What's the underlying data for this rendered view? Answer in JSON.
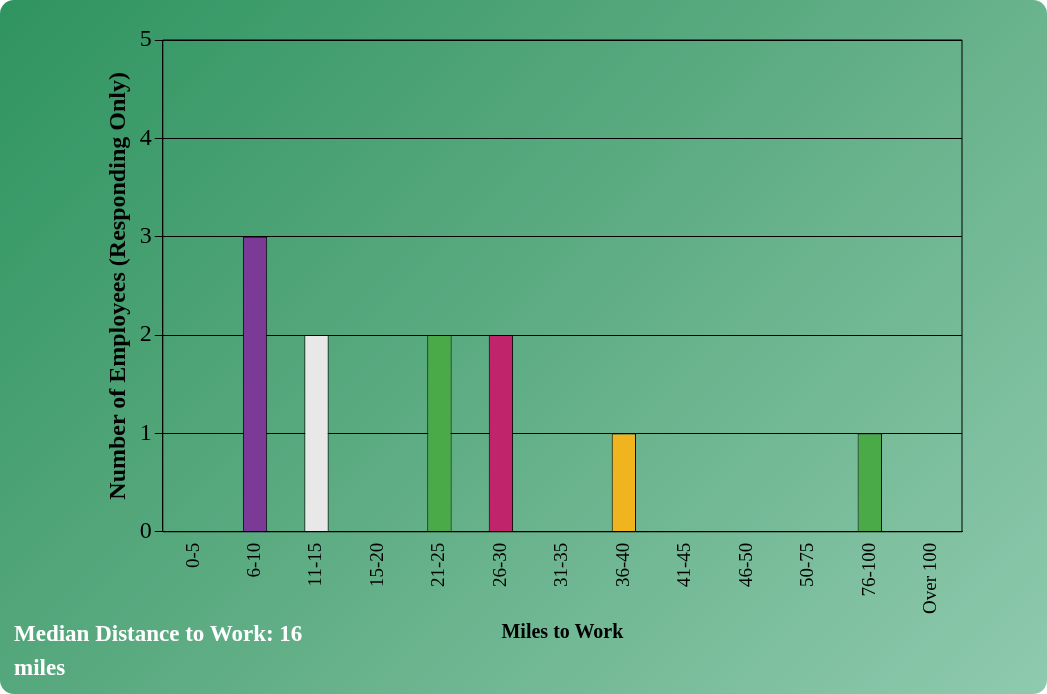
{
  "chart_data": {
    "type": "bar",
    "xlabel": "Miles to Work",
    "ylabel": "Number of Employees (Responding Only)",
    "categories": [
      "0-5",
      "6-10",
      "11-15",
      "15-20",
      "21-25",
      "26-30",
      "31-35",
      "36-40",
      "41-45",
      "46-50",
      "50-75",
      "76-100",
      "Over 100"
    ],
    "values": [
      0,
      3,
      2,
      0,
      2,
      2,
      0,
      1,
      0,
      0,
      0,
      1,
      0
    ],
    "colors": [
      "#f0b41e",
      "#7a3a96",
      "#e8e8e8",
      "#3ab0c0",
      "#4aaa48",
      "#c0246a",
      "#c8b428",
      "#f0b41e",
      "#7a3a96",
      "#e8e8e8",
      "#3ab0c0",
      "#4aaa48",
      "#c0246a"
    ],
    "ylim": [
      0,
      5
    ],
    "yticks": [
      0,
      1,
      2,
      3,
      4,
      5
    ],
    "grid": "y",
    "legend": false,
    "annotations": [
      "Median Distance to Work: 16 miles"
    ]
  }
}
